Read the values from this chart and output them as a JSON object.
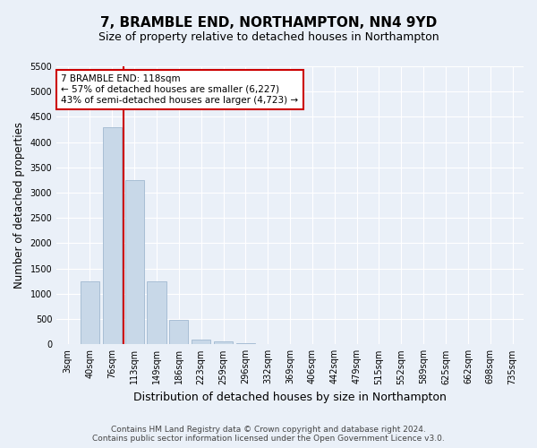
{
  "title": "7, BRAMBLE END, NORTHAMPTON, NN4 9YD",
  "subtitle": "Size of property relative to detached houses in Northampton",
  "xlabel": "Distribution of detached houses by size in Northampton",
  "ylabel": "Number of detached properties",
  "footnote": "Contains HM Land Registry data © Crown copyright and database right 2024.\nContains public sector information licensed under the Open Government Licence v3.0.",
  "bar_labels": [
    "3sqm",
    "40sqm",
    "76sqm",
    "113sqm",
    "149sqm",
    "186sqm",
    "223sqm",
    "259sqm",
    "296sqm",
    "332sqm",
    "369sqm",
    "406sqm",
    "442sqm",
    "479sqm",
    "515sqm",
    "552sqm",
    "589sqm",
    "625sqm",
    "662sqm",
    "698sqm",
    "735sqm"
  ],
  "bar_values": [
    0,
    1250,
    4300,
    3250,
    1250,
    480,
    100,
    50,
    20,
    10,
    5,
    2,
    0,
    0,
    0,
    0,
    0,
    0,
    0,
    0,
    0
  ],
  "bar_color": "#c8d8e8",
  "bar_edge_color": "#a0b8d0",
  "red_line_x": 2.5,
  "red_line_color": "#cc0000",
  "annotation_text": "7 BRAMBLE END: 118sqm\n← 57% of detached houses are smaller (6,227)\n43% of semi-detached houses are larger (4,723) →",
  "annotation_box_color": "#ffffff",
  "annotation_box_edge": "#cc0000",
  "ylim": [
    0,
    5500
  ],
  "yticks": [
    0,
    500,
    1000,
    1500,
    2000,
    2500,
    3000,
    3500,
    4000,
    4500,
    5000,
    5500
  ],
  "bg_color": "#eaf0f8",
  "plot_bg_color": "#eaf0f8",
  "grid_color": "#ffffff",
  "title_fontsize": 11,
  "subtitle_fontsize": 9,
  "axis_label_fontsize": 8.5,
  "tick_fontsize": 7,
  "footnote_fontsize": 6.5
}
